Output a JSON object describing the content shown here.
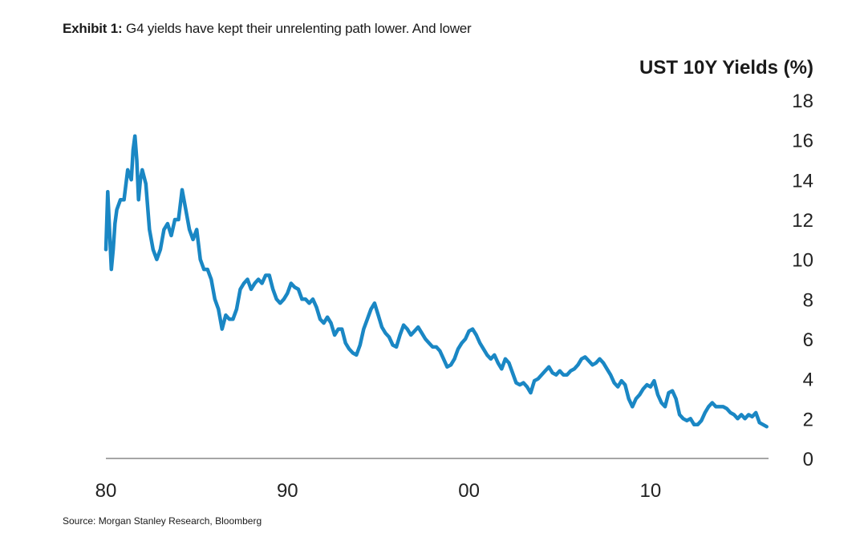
{
  "header": {
    "exhibit_label": "Exhibit 1:",
    "exhibit_title": "G4 yields have kept their unrelenting path lower. And lower"
  },
  "footer": {
    "source": "Source: Morgan Stanley Research, Bloomberg"
  },
  "colors": {
    "series": "#1a87c4",
    "axis": "#a6a6a6",
    "text": "#1a1a1a"
  },
  "chart_data": {
    "type": "line",
    "title": "UST 10Y Yields (%)",
    "xlabel": "",
    "ylabel": "",
    "xlim": [
      1980,
      2016.5
    ],
    "ylim": [
      0,
      18
    ],
    "x_ticks": [
      {
        "value": 1980,
        "label": "80"
      },
      {
        "value": 1990,
        "label": "90"
      },
      {
        "value": 2000,
        "label": "00"
      },
      {
        "value": 2010,
        "label": "10"
      }
    ],
    "y_ticks": [
      {
        "value": 0,
        "label": "0"
      },
      {
        "value": 2,
        "label": "2"
      },
      {
        "value": 4,
        "label": "4"
      },
      {
        "value": 6,
        "label": "6"
      },
      {
        "value": 8,
        "label": "8"
      },
      {
        "value": 10,
        "label": "10"
      },
      {
        "value": 12,
        "label": "12"
      },
      {
        "value": 14,
        "label": "14"
      },
      {
        "value": 16,
        "label": "16"
      },
      {
        "value": 18,
        "label": "18"
      }
    ],
    "y_axis_position": "right",
    "grid": false,
    "series": [
      {
        "name": "UST 10Y Yield",
        "x": [
          1980.0,
          1980.1,
          1980.2,
          1980.3,
          1980.4,
          1980.5,
          1980.6,
          1980.8,
          1981.0,
          1981.2,
          1981.4,
          1981.5,
          1981.6,
          1981.7,
          1981.8,
          1981.9,
          1982.0,
          1982.2,
          1982.4,
          1982.6,
          1982.8,
          1983.0,
          1983.2,
          1983.4,
          1983.6,
          1983.8,
          1984.0,
          1984.2,
          1984.4,
          1984.6,
          1984.8,
          1985.0,
          1985.2,
          1985.4,
          1985.6,
          1985.8,
          1986.0,
          1986.2,
          1986.4,
          1986.6,
          1986.8,
          1987.0,
          1987.2,
          1987.4,
          1987.6,
          1987.8,
          1988.0,
          1988.2,
          1988.4,
          1988.6,
          1988.8,
          1989.0,
          1989.2,
          1989.4,
          1989.6,
          1989.8,
          1990.0,
          1990.2,
          1990.4,
          1990.6,
          1990.8,
          1991.0,
          1991.2,
          1991.4,
          1991.6,
          1991.8,
          1992.0,
          1992.2,
          1992.4,
          1992.6,
          1992.8,
          1993.0,
          1993.2,
          1993.4,
          1993.6,
          1993.8,
          1994.0,
          1994.2,
          1994.4,
          1994.6,
          1994.8,
          1995.0,
          1995.2,
          1995.4,
          1995.6,
          1995.8,
          1996.0,
          1996.2,
          1996.4,
          1996.6,
          1996.8,
          1997.0,
          1997.2,
          1997.4,
          1997.6,
          1997.8,
          1998.0,
          1998.2,
          1998.4,
          1998.6,
          1998.8,
          1999.0,
          1999.2,
          1999.4,
          1999.6,
          1999.8,
          2000.0,
          2000.2,
          2000.4,
          2000.6,
          2000.8,
          2001.0,
          2001.2,
          2001.4,
          2001.6,
          2001.8,
          2002.0,
          2002.2,
          2002.4,
          2002.6,
          2002.8,
          2003.0,
          2003.2,
          2003.4,
          2003.6,
          2003.8,
          2004.0,
          2004.2,
          2004.4,
          2004.6,
          2004.8,
          2005.0,
          2005.2,
          2005.4,
          2005.6,
          2005.8,
          2006.0,
          2006.2,
          2006.4,
          2006.6,
          2006.8,
          2007.0,
          2007.2,
          2007.4,
          2007.6,
          2007.8,
          2008.0,
          2008.2,
          2008.4,
          2008.6,
          2008.8,
          2009.0,
          2009.2,
          2009.4,
          2009.6,
          2009.8,
          2010.0,
          2010.2,
          2010.4,
          2010.6,
          2010.8,
          2011.0,
          2011.2,
          2011.4,
          2011.6,
          2011.8,
          2012.0,
          2012.2,
          2012.4,
          2012.6,
          2012.8,
          2013.0,
          2013.2,
          2013.4,
          2013.6,
          2013.8,
          2014.0,
          2014.2,
          2014.4,
          2014.6,
          2014.8,
          2015.0,
          2015.2,
          2015.4,
          2015.6,
          2015.8,
          2016.0,
          2016.2,
          2016.4
        ],
        "values": [
          10.5,
          13.4,
          11.5,
          9.5,
          10.5,
          11.8,
          12.5,
          13.0,
          13.0,
          14.5,
          14.0,
          15.5,
          16.2,
          15.0,
          13.0,
          14.0,
          14.5,
          13.8,
          11.5,
          10.5,
          10.0,
          10.5,
          11.5,
          11.8,
          11.2,
          12.0,
          12.0,
          13.5,
          12.5,
          11.5,
          11.0,
          11.5,
          10.0,
          9.5,
          9.5,
          9.0,
          8.0,
          7.5,
          6.5,
          7.2,
          7.0,
          7.0,
          7.5,
          8.5,
          8.8,
          9.0,
          8.5,
          8.8,
          9.0,
          8.8,
          9.2,
          9.2,
          8.5,
          8.0,
          7.8,
          8.0,
          8.3,
          8.8,
          8.6,
          8.5,
          8.0,
          8.0,
          7.8,
          8.0,
          7.6,
          7.0,
          6.8,
          7.1,
          6.8,
          6.2,
          6.5,
          6.5,
          5.8,
          5.5,
          5.3,
          5.2,
          5.7,
          6.5,
          7.0,
          7.5,
          7.8,
          7.2,
          6.6,
          6.3,
          6.1,
          5.7,
          5.6,
          6.2,
          6.7,
          6.5,
          6.2,
          6.4,
          6.6,
          6.3,
          6.0,
          5.8,
          5.6,
          5.6,
          5.4,
          5.0,
          4.6,
          4.7,
          5.0,
          5.5,
          5.8,
          6.0,
          6.4,
          6.5,
          6.2,
          5.8,
          5.5,
          5.2,
          5.0,
          5.2,
          4.8,
          4.5,
          5.0,
          4.8,
          4.3,
          3.8,
          3.7,
          3.8,
          3.6,
          3.3,
          3.9,
          4.0,
          4.2,
          4.4,
          4.6,
          4.3,
          4.2,
          4.4,
          4.2,
          4.2,
          4.4,
          4.5,
          4.7,
          5.0,
          5.1,
          4.9,
          4.7,
          4.8,
          5.0,
          4.8,
          4.5,
          4.2,
          3.8,
          3.6,
          3.9,
          3.7,
          3.0,
          2.6,
          3.0,
          3.2,
          3.5,
          3.7,
          3.6,
          3.9,
          3.2,
          2.8,
          2.6,
          3.3,
          3.4,
          3.0,
          2.2,
          2.0,
          1.9,
          2.0,
          1.7,
          1.7,
          1.9,
          2.3,
          2.6,
          2.8,
          2.6,
          2.6,
          2.6,
          2.5,
          2.3,
          2.2,
          2.0,
          2.2,
          2.0,
          2.2,
          2.1,
          2.3,
          1.8,
          1.7,
          1.6
        ]
      }
    ]
  }
}
